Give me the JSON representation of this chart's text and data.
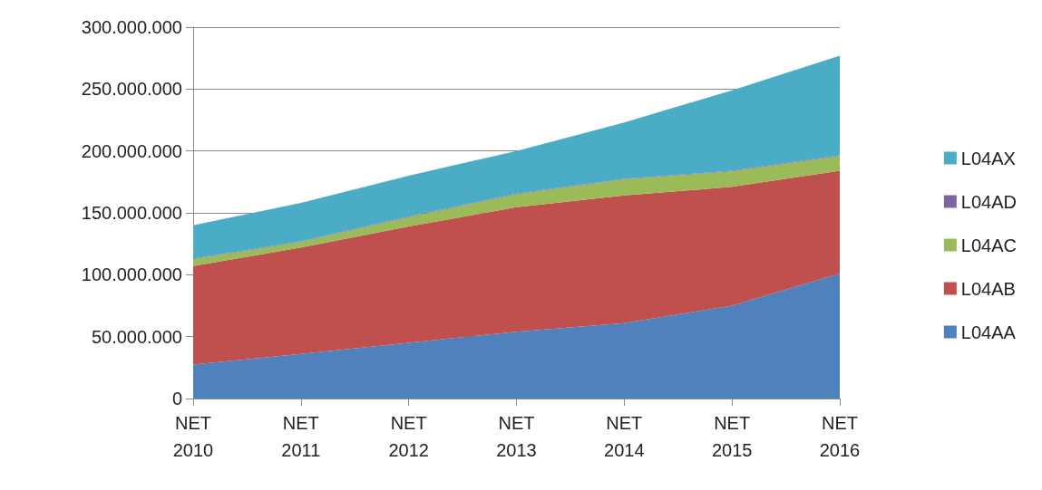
{
  "chart_data": {
    "type": "area",
    "stacked": true,
    "categories": [
      "NET 2010",
      "NET 2011",
      "NET 2012",
      "NET 2013",
      "NET 2014",
      "NET 2015",
      "NET 2016"
    ],
    "series": [
      {
        "name": "L04AA",
        "color": "#4f81bd",
        "values": [
          27500000,
          36000000,
          45000000,
          54000000,
          61000000,
          75000000,
          101000000
        ]
      },
      {
        "name": "L04AB",
        "color": "#c0504d",
        "values": [
          79500000,
          86000000,
          94000000,
          100500000,
          103000000,
          96000000,
          83000000
        ]
      },
      {
        "name": "L04AC",
        "color": "#9bbb59",
        "values": [
          5500000,
          4500000,
          7500000,
          10500000,
          13000000,
          12500000,
          12000000
        ]
      },
      {
        "name": "L04AD",
        "color": "#8064a2",
        "values": [
          500000,
          500000,
          500000,
          500000,
          500000,
          500000,
          500000
        ]
      },
      {
        "name": "L04AX",
        "color": "#4bacc6",
        "values": [
          27000000,
          31000000,
          33000000,
          34500000,
          45500000,
          65000000,
          80500000
        ]
      }
    ],
    "ylim": [
      0,
      300000000
    ],
    "yticks": [
      {
        "value": 0,
        "label": "0"
      },
      {
        "value": 50000000,
        "label": "50.000.000"
      },
      {
        "value": 100000000,
        "label": "100.000.000"
      },
      {
        "value": 150000000,
        "label": "150.000.000"
      },
      {
        "value": 200000000,
        "label": "200.000.000"
      },
      {
        "value": 250000000,
        "label": "250.000.000"
      },
      {
        "value": 300000000,
        "label": "300.000.000"
      }
    ],
    "grid": "y",
    "legend": "right"
  }
}
